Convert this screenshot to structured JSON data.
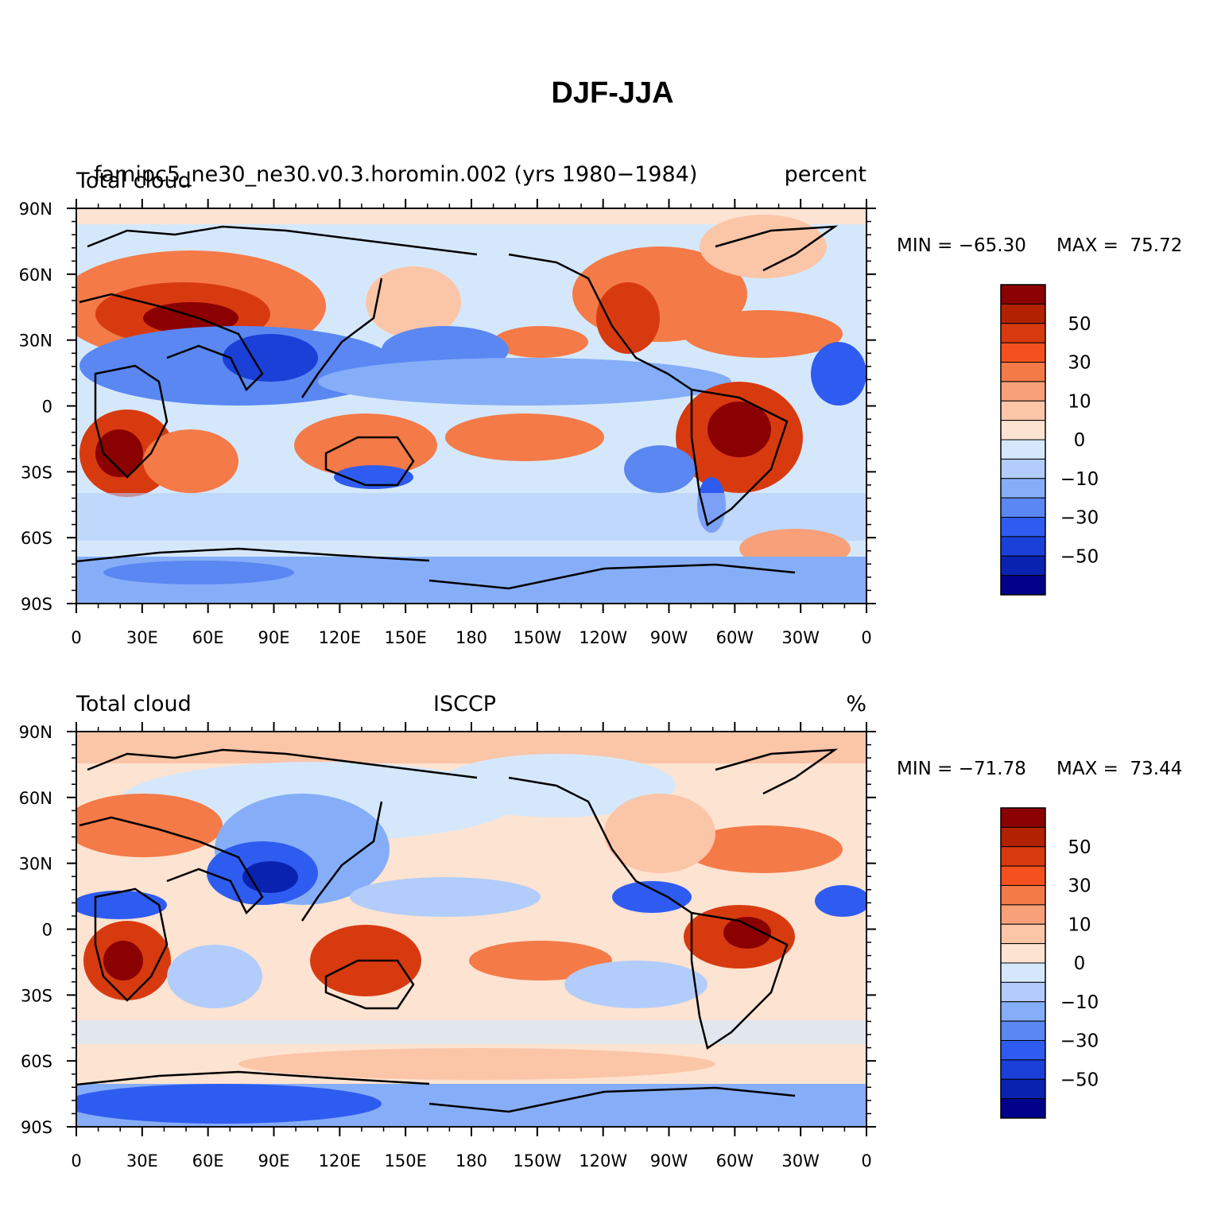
{
  "title": "DJF-JJA",
  "tick_labels": {
    "lat": [
      "90N",
      "60N",
      "30N",
      "0",
      "30S",
      "60S",
      "90S"
    ],
    "lon": [
      "0",
      "30E",
      "60E",
      "90E",
      "120E",
      "150E",
      "180",
      "150W",
      "120W",
      "90W",
      "60W",
      "30W",
      "0"
    ]
  },
  "colorbar": {
    "labels": [
      "50",
      "30",
      "10",
      "0",
      "−10",
      "−30",
      "−50"
    ],
    "colors": [
      "#8b0000",
      "#b22200",
      "#d83a10",
      "#f4511e",
      "#f47a48",
      "#f7a07a",
      "#fbc5a8",
      "#fde3d1",
      "#d5e8fb",
      "#b2cdfb",
      "#86aef8",
      "#5a87f2",
      "#2f5cf0",
      "#1a40d8",
      "#0a22b0",
      "#00008b"
    ]
  },
  "panels": [
    {
      "left_label": "Total cloud",
      "center_label": "famipc5_ne30_ne30.v0.3.horomin.002 (yrs 1980−1984)",
      "right_label": "percent",
      "min_label": "MIN = −65.30",
      "max_label": "MAX =  75.72"
    },
    {
      "left_label": "Total cloud",
      "center_label": "ISCCP",
      "right_label": "%",
      "min_label": "MIN = −71.78",
      "max_label": "MAX =  73.44"
    }
  ]
}
